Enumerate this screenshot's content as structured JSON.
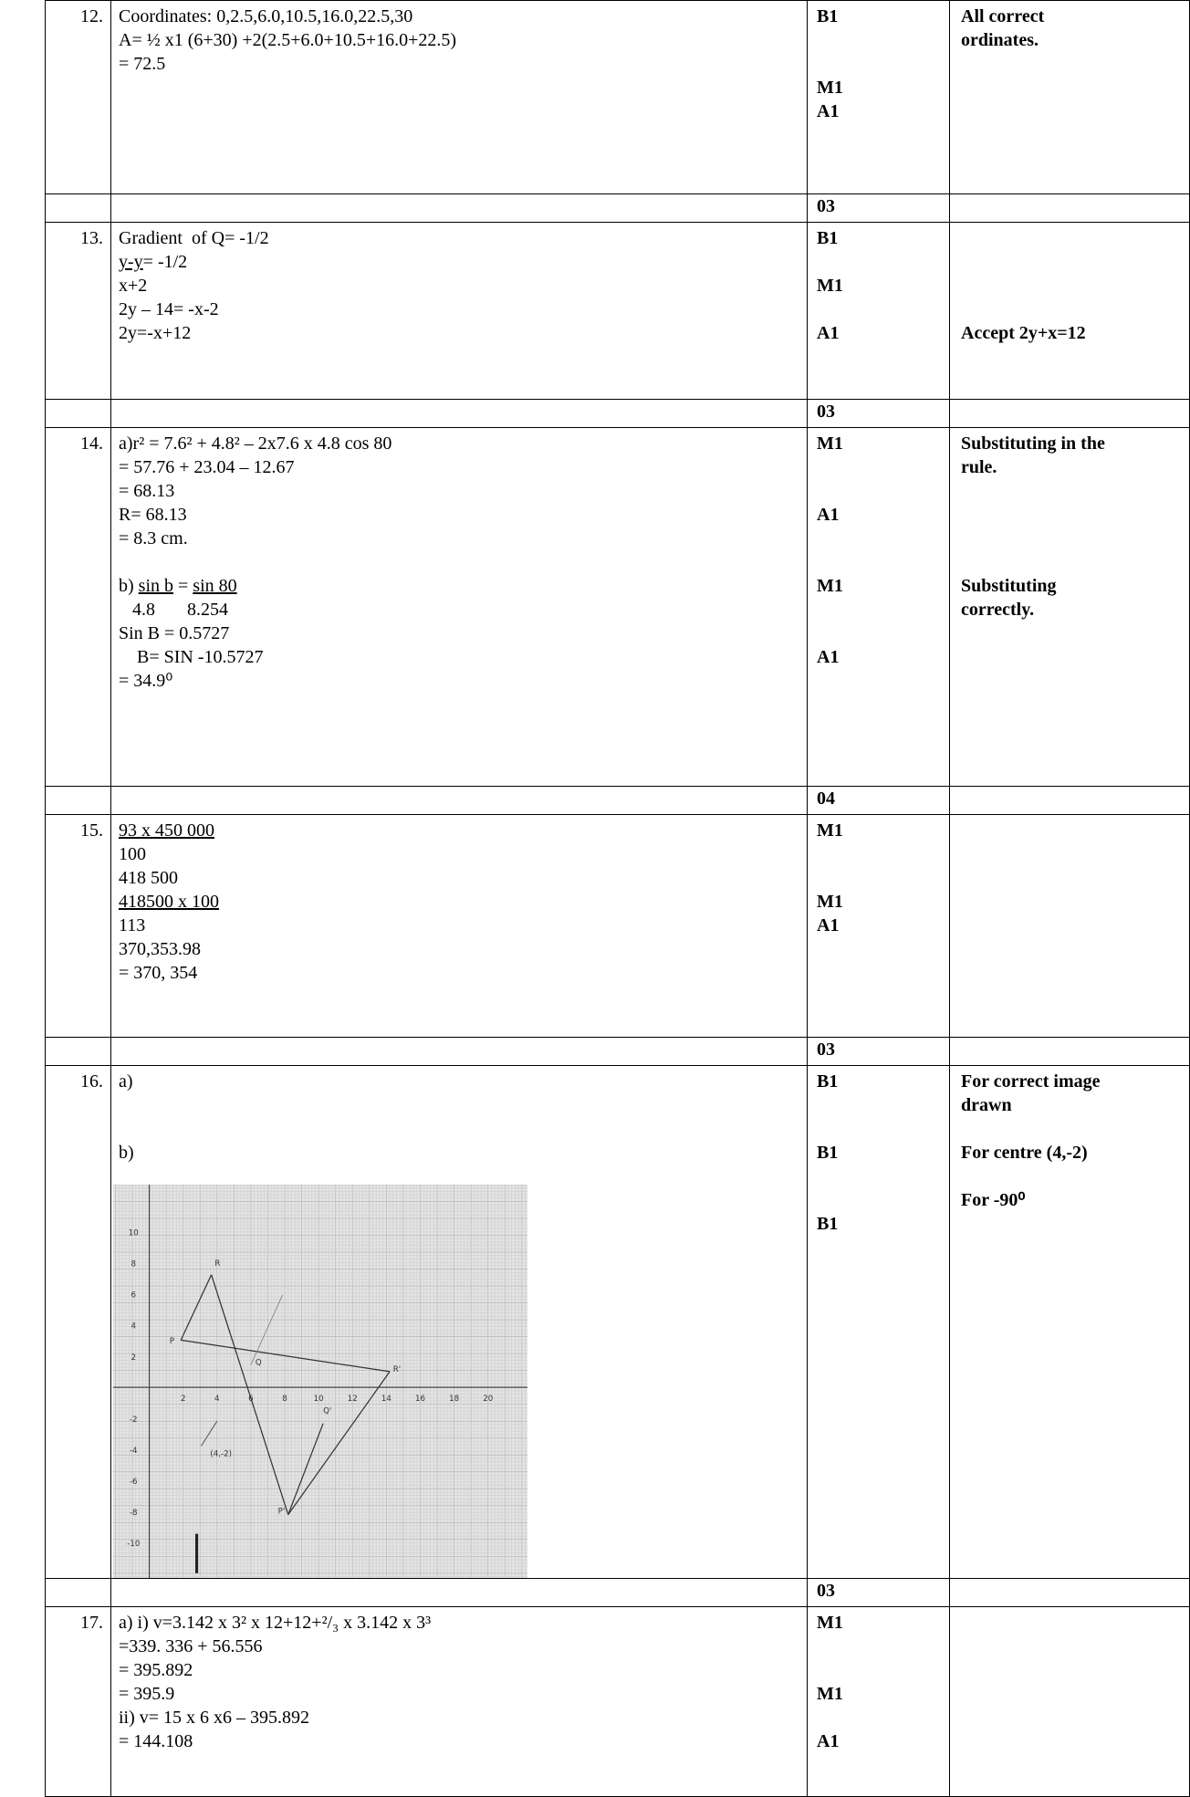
{
  "rows": [
    {
      "number": "12.",
      "content": [
        "Coordinates: 0,2.5,6.0,10.5,16.0,22.5,30",
        "A= ½ x1 (6+30) +2(2.5+6.0+10.5+16.0+22.5)",
        "= 72.5"
      ],
      "marks": [
        "B1",
        null,
        null,
        "M1",
        "A1"
      ],
      "comments": [
        "All correct",
        "ordinates."
      ]
    },
    {
      "total": "03"
    },
    {
      "number": "13.",
      "content": [
        "Gradient  of Q= -1/2",
        [
          {
            "text": "y-y",
            "underline": true
          },
          {
            "text": "= -1/2"
          }
        ],
        "x+2",
        "2y – 14= -x-2",
        "2y=-x+12"
      ],
      "marks": [
        "B1",
        null,
        "M1",
        null,
        "A1"
      ],
      "comments": [
        null,
        null,
        null,
        null,
        "Accept 2y+x=12"
      ]
    },
    {
      "total": "03"
    },
    {
      "number": "14.",
      "content": [
        "a)r² = 7.6² + 4.8² – 2x7.6 x 4.8 cos 80",
        "= 57.76 + 23.04 – 12.67",
        "= 68.13",
        "R= 68.13",
        "= 8.3 cm.",
        null,
        [
          {
            "text": "b) "
          },
          {
            "text": "sin b",
            "underline": true
          },
          {
            "text": " = "
          },
          {
            "text": "sin 80",
            "underline": true
          }
        ],
        "   4.8       8.254",
        "Sin B = 0.5727",
        "    B= SIN -10.5727",
        "= 34.9⁰"
      ],
      "marks": [
        "M1",
        null,
        null,
        "A1",
        null,
        null,
        "M1",
        null,
        null,
        "A1"
      ],
      "comments": [
        "Substituting in the",
        "rule.",
        null,
        null,
        null,
        null,
        "Substituting",
        "correctly."
      ]
    },
    {
      "total": "04"
    },
    {
      "number": "15.",
      "content": [
        [
          {
            "text": "93 x 450 000",
            "underline": true
          }
        ],
        "100",
        "418 500",
        [
          {
            "text": "418500 x 100",
            "underline": true
          }
        ],
        "113",
        "370,353.98",
        "= 370, 354"
      ],
      "marks": [
        "M1",
        null,
        null,
        "M1",
        "A1"
      ],
      "comments": []
    },
    {
      "total": "03"
    },
    {
      "number": "16.",
      "content": [
        "a)",
        null,
        null,
        "b)"
      ],
      "marks": [
        "B1",
        null,
        null,
        "B1",
        null,
        null,
        "B1"
      ],
      "comments": [
        "For correct image",
        "drawn",
        null,
        "For centre (4,-2)",
        null,
        "For -90⁰"
      ],
      "sketch": {
        "x_ticks": [
          2,
          4,
          6,
          8,
          10,
          12,
          14,
          16,
          18,
          20
        ],
        "y_ticks": [
          10,
          8,
          6,
          4,
          2,
          -2,
          -4,
          -6,
          -8,
          -10
        ],
        "labels": [
          "R",
          "P",
          "Q",
          "R'",
          "P'",
          "Q'",
          "(4,-2)"
        ]
      }
    },
    {
      "total": "03"
    },
    {
      "number": "17.",
      "content": [
        "a) i) v=3.142 x 3² x 12+12+²/₃ x 3.142 x 3³",
        "=339. 336 + 56.556",
        "= 395.892",
        "= 395.9",
        "ii) v= 15 x 6 x6 – 395.892",
        "= 144.108"
      ],
      "marks": [
        "M1",
        null,
        null,
        "M1",
        null,
        "A1"
      ],
      "comments": []
    }
  ]
}
